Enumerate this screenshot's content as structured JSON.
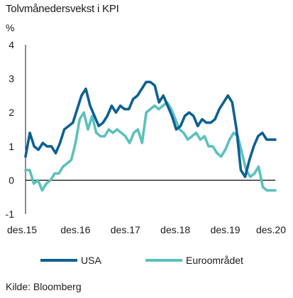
{
  "title": "Tolvmånedersvekst i KPI",
  "source": "Kilde: Bloomberg",
  "chart_data": {
    "type": "line",
    "title": "Tolvmånedersvekst i KPI",
    "ylabel": "%",
    "ylim": [
      -1,
      4
    ],
    "yticks": [
      "4",
      "3",
      "2",
      "1",
      "0",
      "-1"
    ],
    "xlim": [
      0,
      60
    ],
    "xticks": [
      {
        "label": "des.15",
        "pos": 0
      },
      {
        "label": "des.16",
        "pos": 12
      },
      {
        "label": "des.17",
        "pos": 24
      },
      {
        "label": "des.18",
        "pos": 36
      },
      {
        "label": "des.19",
        "pos": 48
      },
      {
        "label": "des.20",
        "pos": 60
      }
    ],
    "grid": false,
    "legend": "bottom",
    "series": [
      {
        "name": "USA",
        "color": "#0d5f93",
        "values": [
          0.7,
          1.4,
          1.0,
          0.9,
          1.1,
          1.0,
          1.0,
          0.8,
          1.1,
          1.5,
          1.6,
          1.7,
          2.1,
          2.5,
          2.7,
          2.2,
          1.9,
          1.6,
          1.7,
          1.9,
          2.2,
          2.0,
          2.2,
          2.1,
          2.1,
          2.4,
          2.5,
          2.7,
          2.9,
          2.9,
          2.8,
          2.3,
          2.5,
          2.2,
          1.9,
          1.5,
          1.6,
          1.9,
          2.0,
          1.9,
          1.6,
          1.8,
          1.7,
          1.7,
          1.8,
          2.1,
          2.3,
          2.5,
          2.3,
          1.5,
          0.3,
          0.1,
          0.6,
          1.0,
          1.3,
          1.4,
          1.2,
          1.2,
          1.2
        ]
      },
      {
        "name": "Euroområdet",
        "color": "#5bc0be",
        "values": [
          0.3,
          0.3,
          -0.1,
          0.0,
          -0.3,
          -0.1,
          0.0,
          0.2,
          0.2,
          0.4,
          0.5,
          0.6,
          1.1,
          1.8,
          2.0,
          1.5,
          1.9,
          1.4,
          1.3,
          1.3,
          1.5,
          1.4,
          1.5,
          1.4,
          1.3,
          1.1,
          1.4,
          1.5,
          1.1,
          2.0,
          2.1,
          2.2,
          2.1,
          2.2,
          2.3,
          2.1,
          1.8,
          1.5,
          1.4,
          1.2,
          1.3,
          1.4,
          1.2,
          1.3,
          1.0,
          1.0,
          0.8,
          0.7,
          0.9,
          1.2,
          1.4,
          1.3,
          0.8,
          0.3,
          0.1,
          0.2,
          0.4,
          -0.2,
          -0.3,
          -0.3,
          -0.3
        ]
      }
    ]
  }
}
